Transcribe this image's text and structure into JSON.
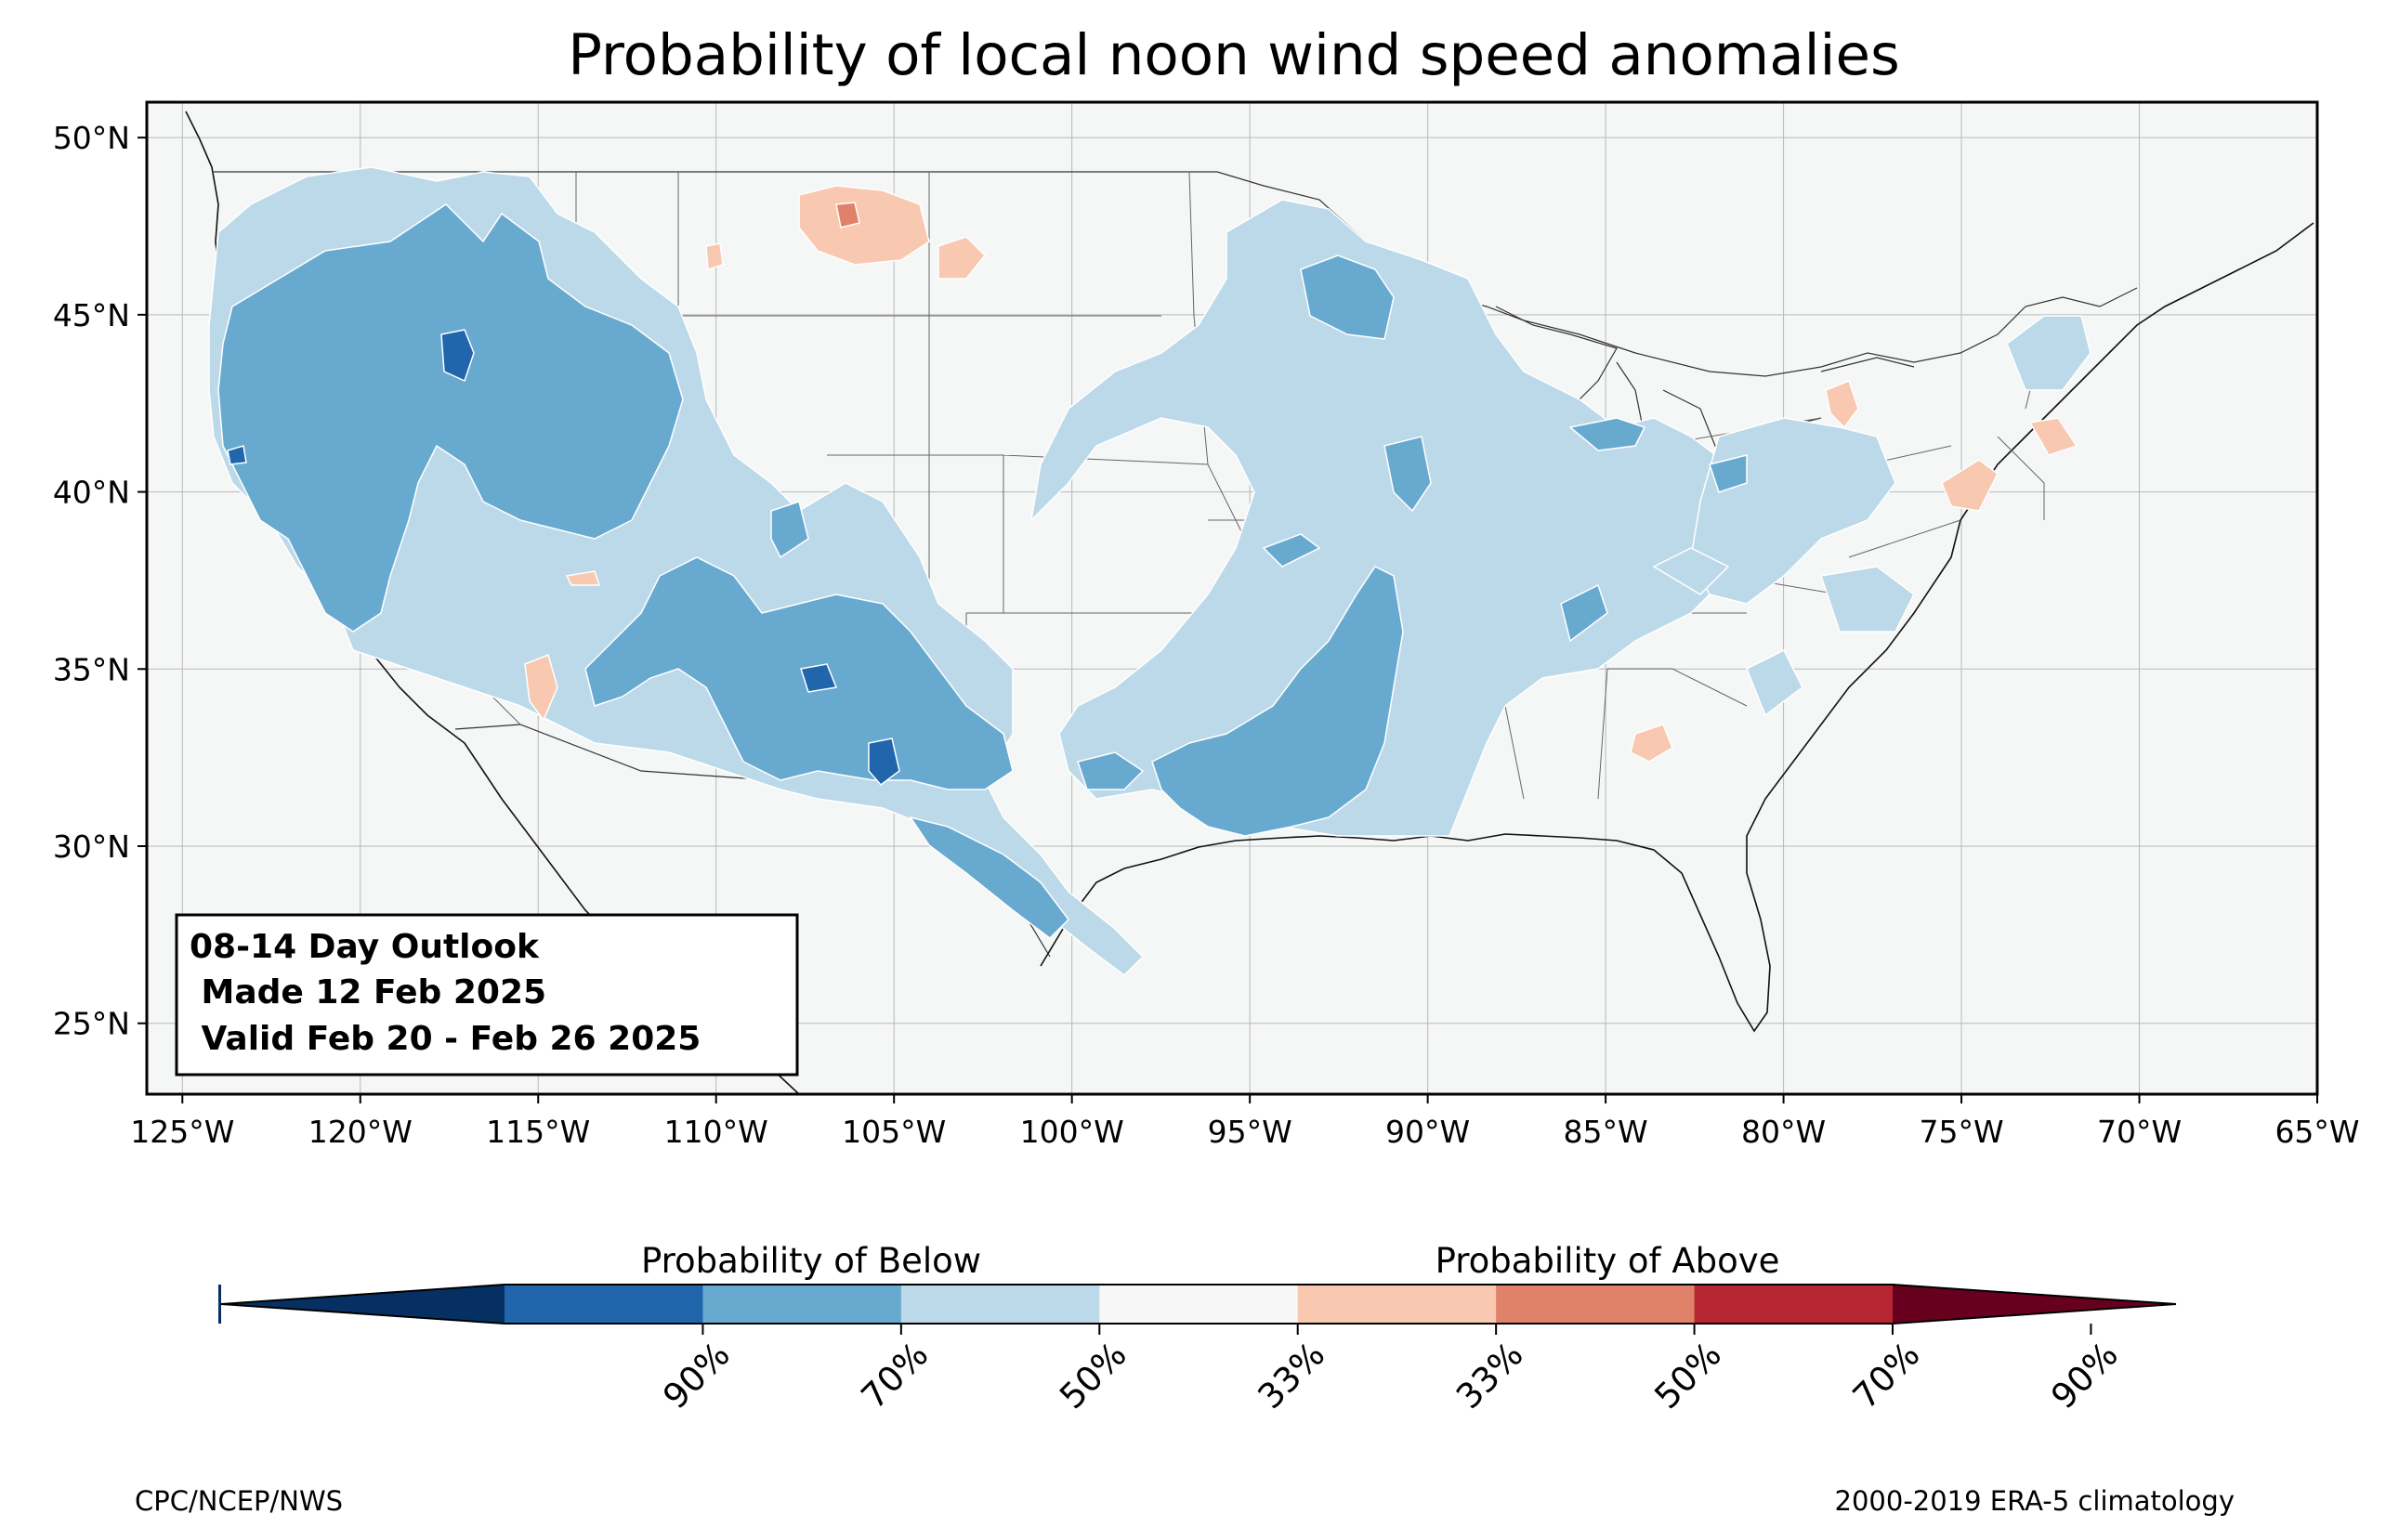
{
  "title": "Probability of local noon wind speed anomalies",
  "map": {
    "projection": "plate-carree",
    "lon_range": [
      -126,
      -65
    ],
    "lat_range": [
      23,
      51
    ],
    "lon_ticks": [
      "125°W",
      "120°W",
      "115°W",
      "110°W",
      "105°W",
      "100°W",
      "95°W",
      "90°W",
      "85°W",
      "80°W",
      "75°W",
      "70°W",
      "65°W"
    ],
    "lat_ticks": [
      "50°N",
      "45°N",
      "40°N",
      "35°N",
      "30°N",
      "25°N"
    ],
    "grid": true,
    "ocean_color": "#f5f6f6"
  },
  "info_box": {
    "line1": "08-14 Day Outlook",
    "line2": " Made 12 Feb 2025",
    "line3": " Valid Feb 20 - Feb 26 2025"
  },
  "colorbar": {
    "below_label": "Probability of Below",
    "above_label": "Probability of Above",
    "tick_labels": [
      "90%",
      "70%",
      "50%",
      "33%",
      "33%",
      "50%",
      "70%",
      "90%"
    ],
    "colors": [
      "#053061",
      "#2166ac",
      "#67a9cf",
      "#bcd9ea",
      "#f7f7f7",
      "#f9c8b0",
      "#e0826a",
      "#b72733",
      "#67001f"
    ]
  },
  "footer": {
    "left": "CPC/NCEP/NWS",
    "right": "2000-2019 ERA-5 climatology"
  }
}
